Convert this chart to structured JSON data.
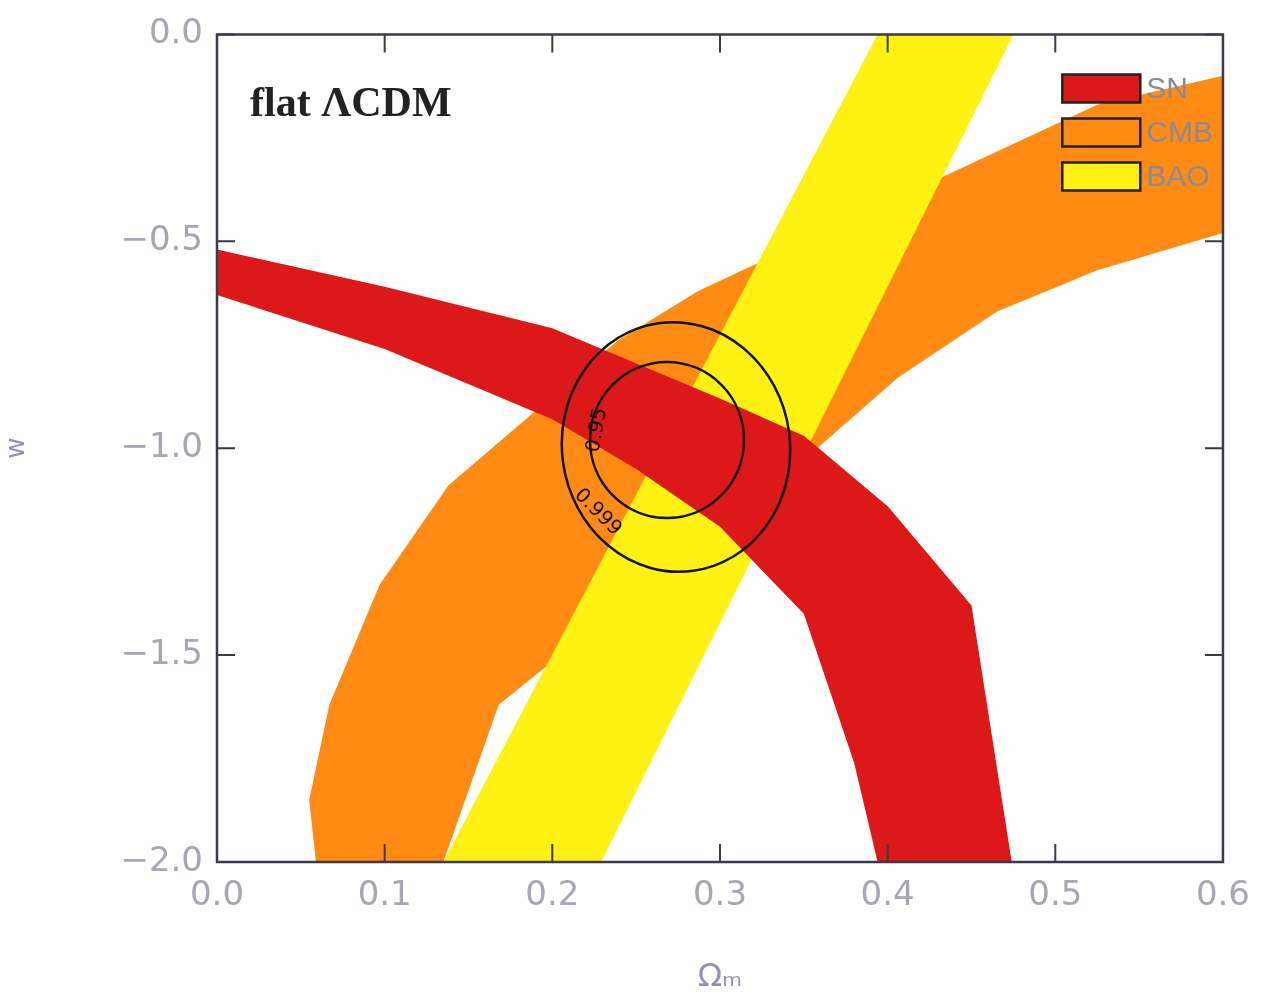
{
  "chart_data": {
    "type": "area",
    "xlabel": "Ωₘ",
    "ylabel": "w",
    "annotations": [
      "flat ΛCDM",
      "0.95",
      "0.999"
    ],
    "xlim": [
      0,
      0.6
    ],
    "ylim": [
      -2,
      0
    ],
    "xticks": [
      {
        "value": 0,
        "label": "0.0"
      },
      {
        "value": 0.1,
        "label": "0.1"
      },
      {
        "value": 0.2,
        "label": "0.2"
      },
      {
        "value": 0.3,
        "label": "0.3"
      },
      {
        "value": 0.4,
        "label": "0.4"
      },
      {
        "value": 0.5,
        "label": "0.5"
      },
      {
        "value": 0.6,
        "label": "0.6"
      }
    ],
    "yticks": [
      {
        "value": 0,
        "label": "0.0"
      },
      {
        "value": -0.5,
        "label": "−0.5"
      },
      {
        "value": -1,
        "label": "−1.0"
      },
      {
        "value": -1.5,
        "label": "−1.5"
      },
      {
        "value": -2,
        "label": "−2.0"
      }
    ],
    "legend": "top right",
    "series": [
      {
        "name": "SN",
        "color": "#dc1818",
        "x": [
          0,
          0.1,
          0.2,
          0.3,
          0.35,
          0.4,
          0.45,
          0.474,
          0.394,
          0.38,
          0.35,
          0.3,
          0.25,
          0.2,
          0.1,
          0
        ],
        "values": [
          -0.52,
          -0.61,
          -0.71,
          -0.88,
          -0.97,
          -1.14,
          -1.38,
          -2.0,
          -2.0,
          -1.76,
          -1.4,
          -1.19,
          -1.05,
          -0.93,
          -0.76,
          -0.63
        ]
      },
      {
        "name": "CMB",
        "color": "#ff8a14",
        "x": [
          0.059,
          0.055,
          0.067,
          0.097,
          0.138,
          0.239,
          0.287,
          0.525,
          0.6,
          0.6,
          0.525,
          0.465,
          0.406,
          0.358,
          0.168,
          0.135
        ],
        "values": [
          -2.0,
          -1.85,
          -1.62,
          -1.33,
          -1.09,
          -0.74,
          -0.62,
          -0.17,
          -0.1,
          -0.48,
          -0.57,
          -0.67,
          -0.83,
          -1.0,
          -1.62,
          -2.0
        ]
      },
      {
        "name": "BAO",
        "color": "#fff212",
        "x": [
          0.135,
          0.394,
          0.475,
          0.229
        ],
        "values": [
          -2.0,
          0,
          0,
          -2.0
        ]
      }
    ]
  }
}
